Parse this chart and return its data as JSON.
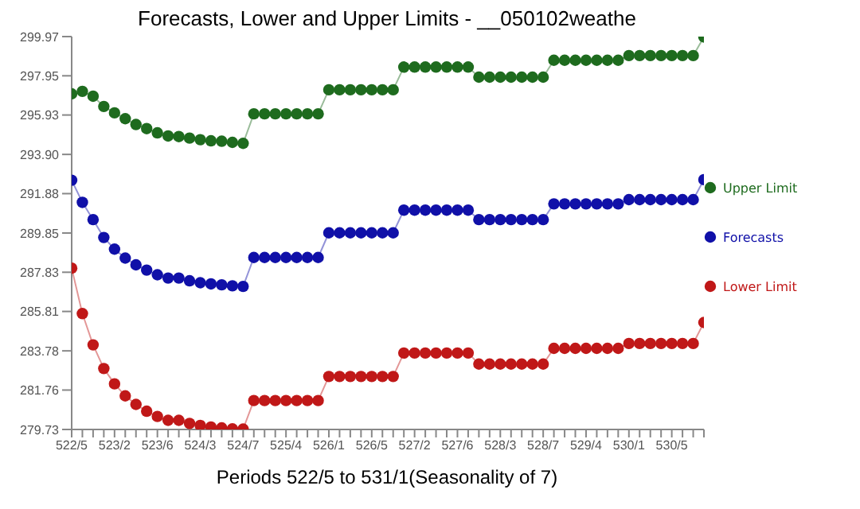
{
  "chart_data": {
    "type": "line",
    "title": "Forecasts, Lower and Upper Limits - __050102weathe",
    "xlabel": "Periods 522/5 to 531/1(Seasonality of 7)",
    "categories": [
      "522/5",
      null,
      null,
      null,
      "523/2",
      null,
      null,
      null,
      "523/6",
      null,
      null,
      null,
      "524/3",
      null,
      null,
      null,
      "524/7",
      null,
      null,
      null,
      "525/4",
      null,
      null,
      null,
      "526/1",
      null,
      null,
      null,
      "526/5",
      null,
      null,
      null,
      "527/2",
      null,
      null,
      null,
      "527/6",
      null,
      null,
      null,
      "528/3",
      null,
      null,
      null,
      "528/7",
      null,
      null,
      null,
      "529/4",
      null,
      null,
      null,
      "530/1",
      null,
      null,
      null,
      "530/5",
      null,
      null,
      null
    ],
    "series": [
      {
        "name": "Upper Limit",
        "color": "#1e6b1e",
        "values": [
          297.02,
          297.15,
          296.9,
          296.37,
          296.04,
          295.74,
          295.44,
          295.23,
          295.01,
          294.85,
          294.82,
          294.74,
          294.66,
          294.6,
          294.58,
          294.52,
          294.47,
          295.99,
          295.99,
          295.99,
          295.99,
          295.99,
          295.99,
          295.99,
          297.23,
          297.23,
          297.23,
          297.23,
          297.23,
          297.23,
          297.23,
          298.4,
          298.4,
          298.4,
          298.4,
          298.4,
          298.4,
          298.4,
          297.88,
          297.88,
          297.88,
          297.88,
          297.88,
          297.88,
          297.88,
          298.75,
          298.75,
          298.75,
          298.75,
          298.75,
          298.75,
          298.75,
          298.99,
          298.99,
          298.99,
          298.99,
          298.99,
          298.99,
          298.99,
          299.95
        ]
      },
      {
        "name": "Forecasts",
        "color": "#1010a8",
        "values": [
          292.57,
          291.43,
          290.54,
          289.62,
          289.02,
          288.56,
          288.21,
          287.94,
          287.7,
          287.53,
          287.53,
          287.39,
          287.29,
          287.23,
          287.18,
          287.13,
          287.1,
          288.59,
          288.59,
          288.59,
          288.59,
          288.59,
          288.59,
          288.59,
          289.86,
          289.86,
          289.86,
          289.86,
          289.86,
          289.86,
          289.86,
          291.03,
          291.03,
          291.03,
          291.03,
          291.03,
          291.03,
          291.03,
          290.54,
          290.54,
          290.54,
          290.54,
          290.54,
          290.54,
          290.54,
          291.35,
          291.35,
          291.35,
          291.35,
          291.35,
          291.35,
          291.35,
          291.57,
          291.57,
          291.57,
          291.57,
          291.57,
          291.57,
          291.57,
          292.6
        ]
      },
      {
        "name": "Lower Limit",
        "color": "#c01818",
        "values": [
          288.04,
          285.7,
          284.09,
          282.87,
          282.08,
          281.46,
          281.02,
          280.67,
          280.4,
          280.2,
          280.2,
          280.04,
          279.94,
          279.86,
          279.81,
          279.76,
          279.75,
          281.22,
          281.22,
          281.22,
          281.22,
          281.22,
          281.22,
          281.22,
          282.46,
          282.46,
          282.46,
          282.46,
          282.46,
          282.46,
          282.46,
          283.67,
          283.67,
          283.67,
          283.67,
          283.67,
          283.67,
          283.67,
          283.1,
          283.1,
          283.1,
          283.1,
          283.1,
          283.1,
          283.1,
          283.91,
          283.91,
          283.91,
          283.91,
          283.91,
          283.91,
          283.91,
          284.16,
          284.16,
          284.16,
          284.16,
          284.16,
          284.16,
          284.16,
          285.24
        ]
      }
    ],
    "ylim": [
      279.73,
      299.97
    ],
    "yticks": [
      279.73,
      281.76,
      283.78,
      285.81,
      287.83,
      289.85,
      291.88,
      {
        "value": 293.9,
        "label": "293.90"
      },
      295.93,
      297.95,
      299.97
    ],
    "grid": false,
    "legend": "right",
    "marker": "circle",
    "line_style": "solid"
  }
}
